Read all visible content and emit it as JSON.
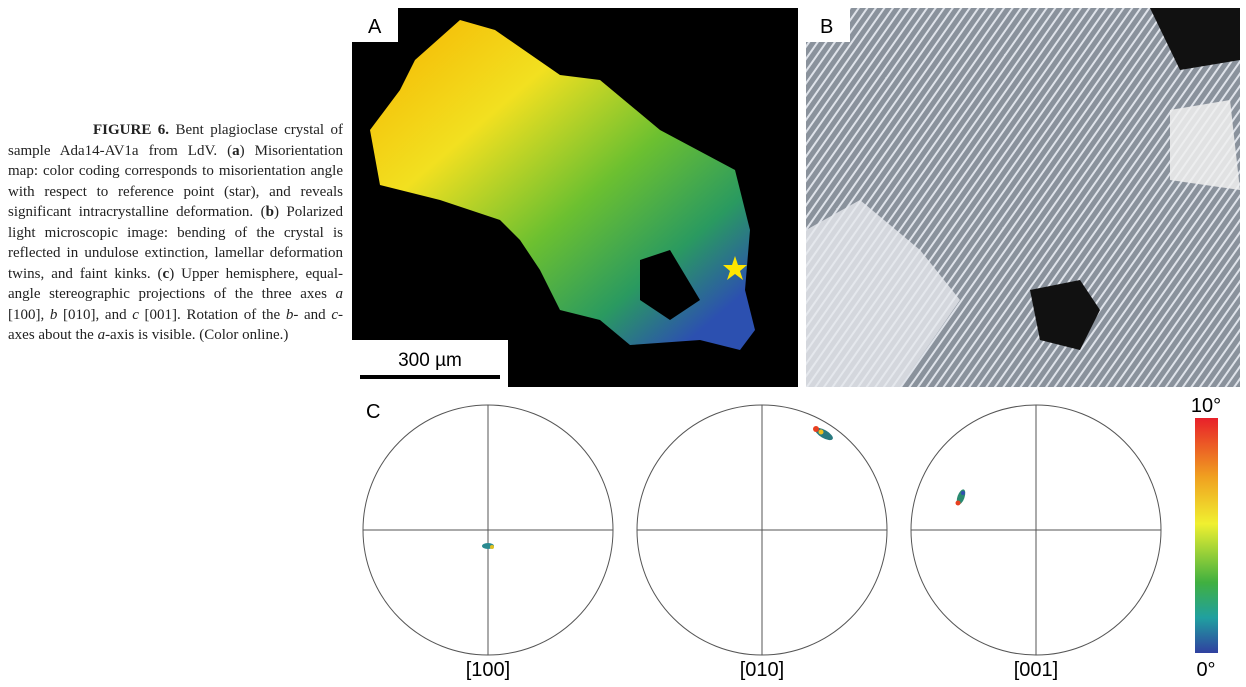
{
  "caption": {
    "runs": [
      {
        "text": "FIGURE 6.",
        "style": "bold"
      },
      {
        "text": " Bent plagioclase crystal of sample Ada14-AV1a from LdV. ("
      },
      {
        "text": "a",
        "style": "bold"
      },
      {
        "text": ") Misorientation map: color coding corresponds to misorientation angle with respect to reference point (star), and reveals significant intracrystalline deformation. ("
      },
      {
        "text": "b",
        "style": "bold"
      },
      {
        "text": ") Polarized light microscopic image: bending of the crystal is reflected in undulose extinction, lamellar deformation twins, and faint kinks. ("
      },
      {
        "text": "c",
        "style": "bold"
      },
      {
        "text": ") Upper hemisphere, equal-angle stereographic projections of the three axes "
      },
      {
        "text": "a",
        "style": "italic"
      },
      {
        "text": " [100], "
      },
      {
        "text": "b",
        "style": "italic"
      },
      {
        "text": " [010], and "
      },
      {
        "text": "c",
        "style": "italic"
      },
      {
        "text": " [001]. Rotation of the "
      },
      {
        "text": "b",
        "style": "italic"
      },
      {
        "text": "- and "
      },
      {
        "text": "c",
        "style": "italic"
      },
      {
        "text": "-axes about the "
      },
      {
        "text": "a",
        "style": "italic"
      },
      {
        "text": "-axis is visible. (Color online.)"
      }
    ]
  },
  "panel_a": {
    "label": "A",
    "scale_bar": "300 µm"
  },
  "panel_b": {
    "label": "B"
  },
  "panel_c": {
    "label": "C",
    "projections": [
      "[100]",
      "[010]",
      "[001]"
    ],
    "colorbar": {
      "max": "10°",
      "min": "0°"
    }
  }
}
